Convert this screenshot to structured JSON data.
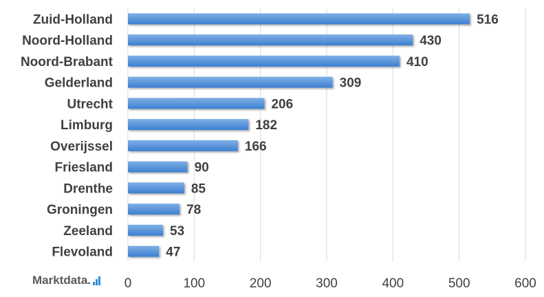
{
  "brand": {
    "name": "Marktdata.",
    "icon": "bar-chart-icon",
    "icon_color": "#2e8fd8"
  },
  "colors": {
    "bar_top": "#7fb0e6",
    "bar_bottom": "#3d7fd0",
    "grid": "#d9d9d9",
    "text": "#404040"
  },
  "chart_data": {
    "type": "bar",
    "orientation": "horizontal",
    "categories": [
      "Zuid-Holland",
      "Noord-Holland",
      "Noord-Brabant",
      "Gelderland",
      "Utrecht",
      "Limburg",
      "Overijssel",
      "Friesland",
      "Drenthe",
      "Groningen",
      "Zeeland",
      "Flevoland"
    ],
    "values": [
      516,
      430,
      410,
      309,
      206,
      182,
      166,
      90,
      85,
      78,
      53,
      47
    ],
    "xlim": [
      0,
      600
    ],
    "xticks": [
      0,
      100,
      200,
      300,
      400,
      500,
      600
    ],
    "title": "",
    "xlabel": "",
    "ylabel": "",
    "grid": "vertical",
    "data_labels": true
  }
}
